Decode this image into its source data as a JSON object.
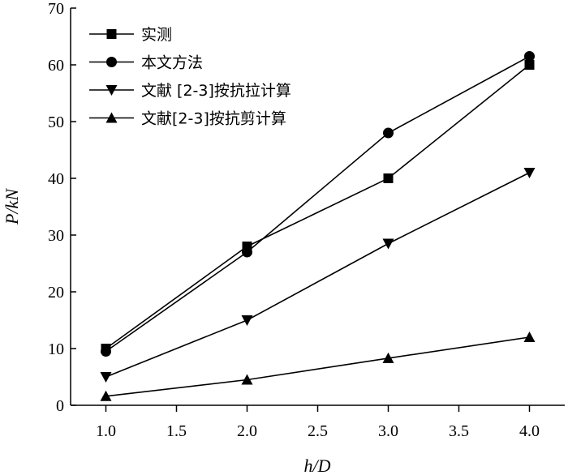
{
  "chart_data": {
    "type": "line",
    "x": [
      1.0,
      2.0,
      3.0,
      4.0
    ],
    "xlabel": "h/D",
    "ylabel": "P/kN",
    "xlim": [
      0.75,
      4.25
    ],
    "ylim": [
      0,
      70
    ],
    "xticks": [
      1.0,
      1.5,
      2.0,
      2.5,
      3.0,
      3.5,
      4.0
    ],
    "xtick_labels": [
      "1.0",
      "1.5",
      "2.0",
      "2.5",
      "3.0",
      "3.5",
      "4.0"
    ],
    "yticks": [
      0,
      10,
      20,
      30,
      40,
      50,
      60,
      70
    ],
    "ytick_labels": [
      "0",
      "10",
      "20",
      "30",
      "40",
      "50",
      "60",
      "70"
    ],
    "grid": false,
    "legend_position": "top-left",
    "series": [
      {
        "name": "实测",
        "marker": "square",
        "values": [
          10.0,
          28.0,
          40.0,
          60.0
        ]
      },
      {
        "name": "本文方法",
        "marker": "circle",
        "values": [
          9.5,
          27.0,
          48.0,
          61.5
        ]
      },
      {
        "name": "文献 [2-3]按抗拉计算",
        "marker": "triangle-down",
        "values": [
          5.0,
          15.0,
          28.5,
          41.0
        ]
      },
      {
        "name": "文献[2-3]按抗剪计算",
        "marker": "triangle-up",
        "values": [
          1.6,
          4.5,
          8.3,
          12.0
        ]
      }
    ]
  }
}
